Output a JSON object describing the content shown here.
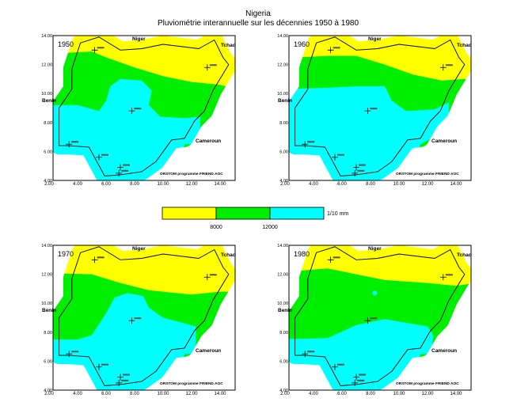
{
  "header": {
    "title": "Nigeria",
    "subtitle": "Pluviométrie interannuelle sur les décennies 1950 à 1980"
  },
  "legend": {
    "labels": [
      "8000",
      "12000"
    ],
    "unit": "1/10 mm",
    "colors": [
      "#ffff00",
      "#00ee00",
      "#00ffff"
    ]
  },
  "panels": [
    {
      "year": "1950"
    },
    {
      "year": "1960"
    },
    {
      "year": "1970"
    },
    {
      "year": "1980"
    }
  ],
  "map_labels": {
    "niger": "Niger",
    "tchad": "Tchad",
    "benin": "Benin",
    "cameroun": "Cameroun",
    "credit": "ORSTOM programme FRIEND AOC"
  },
  "x_ticks": [
    "2.00",
    "4.00",
    "6.00",
    "8.00",
    "10.00",
    "12.00",
    "14.00"
  ],
  "y_ticks": [
    "4.00",
    "6.00",
    "8.00",
    "10.00",
    "12.00",
    "14.00"
  ]
}
